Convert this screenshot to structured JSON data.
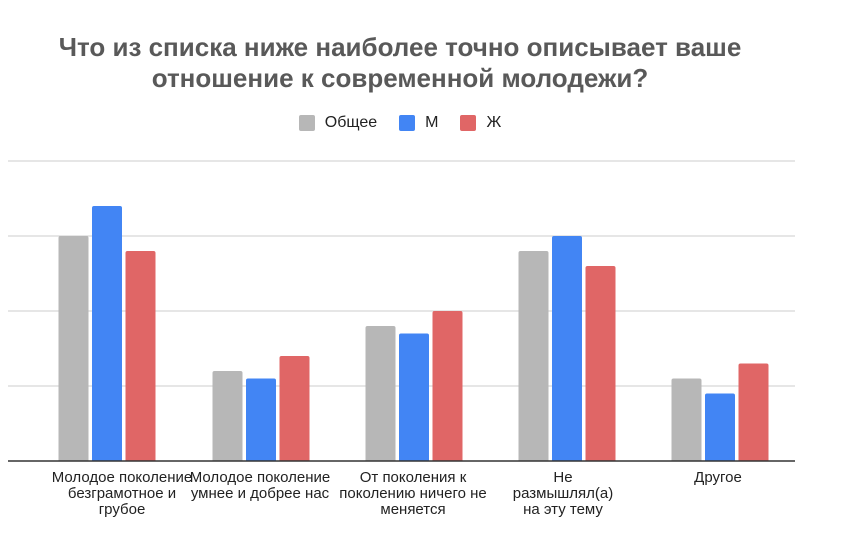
{
  "chart_data": {
    "type": "bar",
    "title": "Что из списка ниже наиболее точно описывает ваше отношение к современной молодежи?",
    "title_lines": [
      "Что из списка ниже наиболее точно описывает ваше",
      "отношение к современной молодежи?"
    ],
    "categories": [
      "Молодое поколение безграмотное и грубое",
      "Молодое поколение умнее и добрее нас",
      "От поколения к поколению ничего не меняется",
      "Не размышлял(а) на эту тему",
      "Другое"
    ],
    "series": [
      {
        "name": "Общее",
        "color": "#b7b7b7",
        "values": [
          30,
          12,
          18,
          28,
          11
        ]
      },
      {
        "name": "М",
        "color": "#4285f4",
        "values": [
          34,
          11,
          17,
          30,
          9
        ]
      },
      {
        "name": "Ж",
        "color": "#e06666",
        "values": [
          28,
          14,
          20,
          26,
          13
        ]
      }
    ],
    "ylim": [
      0,
      40
    ],
    "grid": true,
    "legend_position": "top",
    "xlabel": "",
    "ylabel": ""
  }
}
